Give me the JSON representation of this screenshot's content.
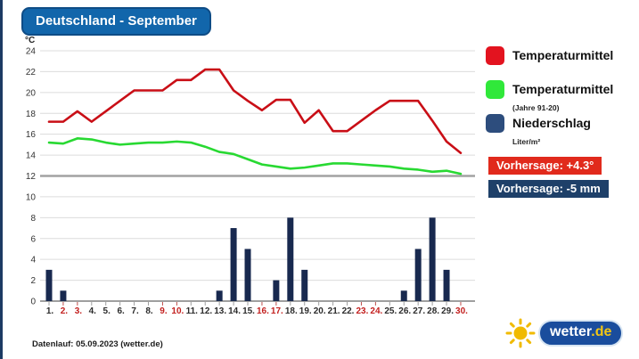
{
  "panel": {
    "title": "Deutschland - September"
  },
  "legend": {
    "items": [
      {
        "label": "Temperaturmittel",
        "sublabel": "",
        "color": "#e3131f"
      },
      {
        "label": "Temperaturmittel",
        "sublabel": "(Jahre 91-20)",
        "color": "#30e83a"
      },
      {
        "label": "Niederschlag",
        "sublabel": "Liter/m²",
        "color": "#2d4d7d"
      }
    ]
  },
  "badges": [
    {
      "text": "Vorhersage: +4.3°",
      "color": "#e12a1c"
    },
    {
      "text": "Vorhersage: -5 mm",
      "color": "#1e4069"
    }
  ],
  "footer": {
    "datenlauf": "Datenlauf: 05.09.2023 (wetter.de)"
  },
  "logo": {
    "name": "wetter",
    "tld": ".de"
  },
  "chart_data": {
    "type": "line+bar",
    "title": "Deutschland - September",
    "ylabel": "°C",
    "ylim": [
      0,
      24
    ],
    "ytick_step": 2,
    "emphasized_gridline": 12,
    "grid": true,
    "x": [
      1,
      2,
      3,
      4,
      5,
      6,
      7,
      8,
      9,
      10,
      11,
      12,
      13,
      14,
      15,
      16,
      17,
      18,
      19,
      20,
      21,
      22,
      23,
      24,
      25,
      26,
      27,
      28,
      29,
      30
    ],
    "x_labels": [
      "1.",
      "2.",
      "3.",
      "4.",
      "5.",
      "6.",
      "7.",
      "8.",
      "9.",
      "10.",
      "11.",
      "12.",
      "13.",
      "14.",
      "15.",
      "16.",
      "17.",
      "18.",
      "19.",
      "20.",
      "21.",
      "22.",
      "23.",
      "24.",
      "25.",
      "26.",
      "27.",
      "28.",
      "29.",
      "30."
    ],
    "weekend_days": [
      2,
      3,
      9,
      10,
      16,
      17,
      23,
      24,
      30
    ],
    "series": [
      {
        "id": "temp-line",
        "name": "Temperaturmittel",
        "type": "line",
        "color": "#c90e16",
        "values": [
          17.2,
          17.2,
          18.2,
          17.2,
          18.2,
          19.2,
          20.2,
          20.2,
          20.2,
          21.2,
          21.2,
          22.2,
          22.2,
          20.2,
          19.2,
          18.3,
          19.3,
          19.3,
          17.1,
          18.3,
          16.3,
          16.3,
          17.3,
          18.3,
          19.2,
          19.2,
          19.2,
          17.3,
          15.3,
          14.2
        ]
      },
      {
        "id": "temp-avg-line",
        "name": "Temperaturmittel (Jahre 91-20)",
        "type": "line",
        "color": "#28d932",
        "values": [
          15.2,
          15.1,
          15.6,
          15.5,
          15.2,
          15.0,
          15.1,
          15.2,
          15.2,
          15.3,
          15.2,
          14.8,
          14.3,
          14.1,
          13.6,
          13.1,
          12.9,
          12.7,
          12.8,
          13.0,
          13.2,
          13.2,
          13.1,
          13.0,
          12.9,
          12.7,
          12.6,
          12.4,
          12.5,
          12.2
        ]
      },
      {
        "id": "precip-bars",
        "name": "Niederschlag (Liter/m²)",
        "type": "bar",
        "color": "#18294f",
        "values": [
          3,
          1,
          0,
          0,
          0,
          0,
          0,
          0,
          0,
          0,
          0,
          0,
          1,
          7,
          5,
          0,
          2,
          8,
          3,
          0,
          0,
          0,
          0,
          0,
          0,
          1,
          5,
          8,
          3,
          0
        ]
      }
    ]
  }
}
